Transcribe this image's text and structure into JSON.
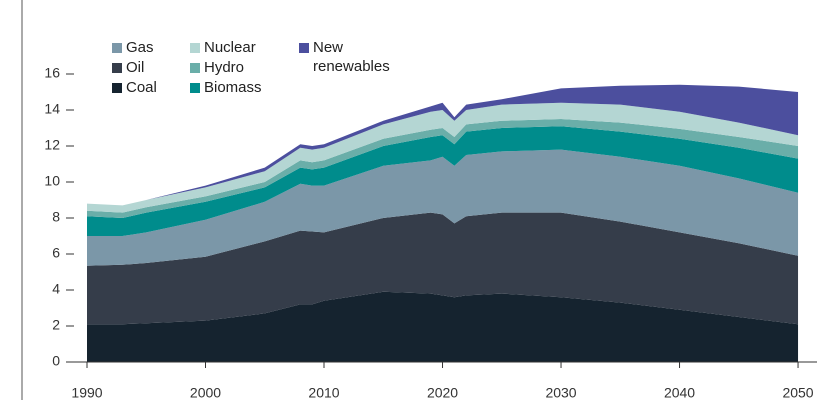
{
  "chart_data": {
    "type": "stacked_area",
    "x": [
      1990,
      1993,
      1995,
      2000,
      2005,
      2008,
      2009,
      2010,
      2015,
      2019,
      2020,
      2021,
      2022,
      2025,
      2030,
      2035,
      2040,
      2045,
      2050
    ],
    "series": [
      {
        "name": "Coal",
        "color": "#15232f",
        "values": [
          2.1,
          2.1,
          2.15,
          2.3,
          2.7,
          3.2,
          3.2,
          3.4,
          3.9,
          3.8,
          3.7,
          3.6,
          3.7,
          3.8,
          3.6,
          3.3,
          2.9,
          2.5,
          2.1
        ]
      },
      {
        "name": "Oil",
        "color": "#353d4a",
        "values": [
          3.25,
          3.3,
          3.35,
          3.55,
          4.0,
          4.1,
          4.05,
          3.8,
          4.1,
          4.5,
          4.5,
          4.1,
          4.4,
          4.5,
          4.7,
          4.5,
          4.3,
          4.1,
          3.8
        ]
      },
      {
        "name": "Gas",
        "color": "#7b97a8",
        "values": [
          1.65,
          1.6,
          1.7,
          2.05,
          2.2,
          2.6,
          2.55,
          2.6,
          2.9,
          2.9,
          3.2,
          3.2,
          3.4,
          3.4,
          3.5,
          3.6,
          3.7,
          3.6,
          3.5
        ]
      },
      {
        "name": "Biomass",
        "color": "#008c8c",
        "values": [
          1.1,
          1.0,
          1.1,
          1.0,
          0.8,
          0.9,
          0.9,
          1.0,
          1.1,
          1.3,
          1.2,
          1.2,
          1.3,
          1.3,
          1.3,
          1.4,
          1.5,
          1.7,
          1.9
        ]
      },
      {
        "name": "Hydro",
        "color": "#6aaea9",
        "values": [
          0.3,
          0.3,
          0.3,
          0.3,
          0.3,
          0.4,
          0.4,
          0.4,
          0.4,
          0.4,
          0.4,
          0.4,
          0.4,
          0.4,
          0.4,
          0.5,
          0.55,
          0.6,
          0.7
        ]
      },
      {
        "name": "Nuclear",
        "color": "#b4d6d3",
        "values": [
          0.4,
          0.4,
          0.4,
          0.5,
          0.6,
          0.7,
          0.7,
          0.7,
          0.8,
          1.0,
          1.0,
          0.9,
          0.8,
          0.9,
          0.9,
          1.0,
          0.95,
          0.8,
          0.6
        ]
      },
      {
        "name": "New renewables",
        "color": "#4c4f9e",
        "values": [
          0,
          0,
          0,
          0.1,
          0.2,
          0.2,
          0.2,
          0.2,
          0.2,
          0.3,
          0.4,
          0.2,
          0.3,
          0.3,
          0.8,
          1.05,
          1.5,
          2.0,
          2.4
        ]
      }
    ],
    "xlim": [
      1990,
      2051.6
    ],
    "xticks": [
      1990,
      2000,
      2010,
      2020,
      2030,
      2040,
      2050
    ],
    "ylim": [
      0,
      16
    ],
    "yticks": [
      0,
      2,
      4,
      6,
      8,
      10,
      12,
      14,
      16
    ]
  }
}
